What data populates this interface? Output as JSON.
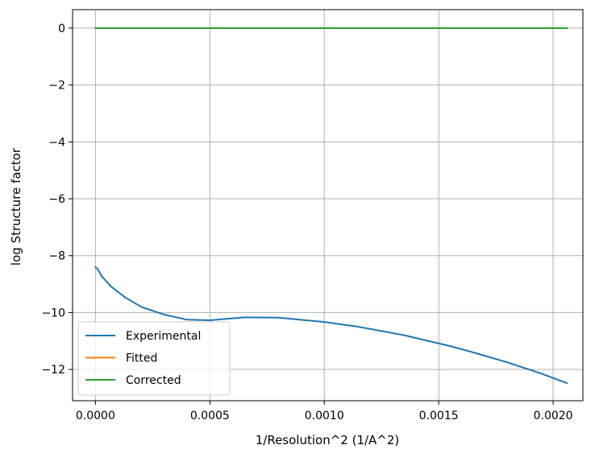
{
  "chart_data": {
    "type": "line",
    "title": "",
    "xlabel": "1/Resolution^2 (1/A^2)",
    "ylabel": "log Structure factor",
    "xlim": [
      -0.0001,
      0.00213
    ],
    "ylim": [
      -13.1,
      0.65
    ],
    "xticks": [
      0.0,
      0.0005,
      0.001,
      0.0015,
      0.002
    ],
    "xtick_labels": [
      "0.0000",
      "0.0005",
      "0.0010",
      "0.0015",
      "0.0020"
    ],
    "yticks": [
      0,
      -2,
      -4,
      -6,
      -8,
      -10,
      -12
    ],
    "ytick_labels": [
      "0",
      "−2",
      "−4",
      "−6",
      "−8",
      "−10",
      "−12"
    ],
    "grid": true,
    "legend_position": "lower-left",
    "series": [
      {
        "name": "Experimental",
        "color": "#1f77b4",
        "x": [
          0.0,
          1e-05,
          3e-05,
          7e-05,
          0.00013,
          0.0002,
          0.0003,
          0.0004,
          0.0005,
          0.00065,
          0.0008,
          0.001,
          0.00115,
          0.00135,
          0.00155,
          0.00165,
          0.0018,
          0.00195,
          0.00206
        ],
        "y": [
          -8.4,
          -8.48,
          -8.75,
          -9.1,
          -9.47,
          -9.8,
          -10.07,
          -10.25,
          -10.27,
          -10.17,
          -10.18,
          -10.33,
          -10.5,
          -10.8,
          -11.18,
          -11.4,
          -11.75,
          -12.15,
          -12.48
        ]
      },
      {
        "name": "Fitted",
        "color": "#ff7f0e",
        "x": [
          0.0,
          0.00206
        ],
        "y": [
          0.0,
          0.0
        ]
      },
      {
        "name": "Corrected",
        "color": "#2ca02c",
        "x": [
          0.0,
          0.00206
        ],
        "y": [
          0.0,
          0.0
        ]
      }
    ]
  }
}
